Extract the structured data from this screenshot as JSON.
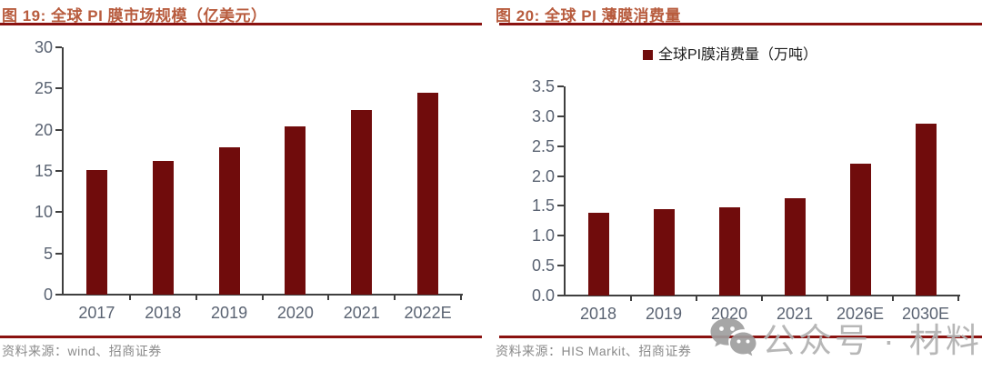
{
  "watermark": {
    "text": "公众号 · 材料圈",
    "icon": "wechat-icon"
  },
  "colors": {
    "bar_fill": "#700c0c",
    "title_text": "#b85c3e",
    "rule_red": "#8a1210",
    "axis_line": "#3f3f3f",
    "tick_label": "#5a6372",
    "source_text": "#8a8a8a",
    "watermark_gray": "#b1b1b1"
  },
  "chart_data": [
    {
      "type": "bar",
      "title": "图 19: 全球 PI 膜市场规模（亿美元）",
      "categories": [
        "2017",
        "2018",
        "2019",
        "2020",
        "2021",
        "2022E"
      ],
      "values": [
        15.1,
        16.2,
        17.9,
        20.4,
        22.4,
        24.5
      ],
      "xlabel": "",
      "ylabel": "",
      "ylim": [
        0,
        30
      ],
      "ytick_labels": [
        "30",
        "25",
        "20",
        "15",
        "10",
        "5",
        "0"
      ],
      "grid": false,
      "legend": null,
      "source": "资料来源：wind、招商证券"
    },
    {
      "type": "bar",
      "title": "图 20: 全球 PI 薄膜消费量",
      "categories": [
        "2018",
        "2019",
        "2020",
        "2021",
        "2026E",
        "2030E"
      ],
      "values": [
        1.39,
        1.45,
        1.48,
        1.63,
        2.21,
        2.87
      ],
      "xlabel": "",
      "ylabel": "",
      "ylim": [
        0,
        3.5
      ],
      "ytick_labels": [
        "3.5",
        "3.0",
        "2.5",
        "2.0",
        "1.5",
        "1.0",
        "0.5",
        "0.0"
      ],
      "grid": false,
      "legend": "全球PI膜消费量（万吨）",
      "legend_position": "top-center",
      "source": "资料来源：HIS Markit、招商证券"
    }
  ]
}
